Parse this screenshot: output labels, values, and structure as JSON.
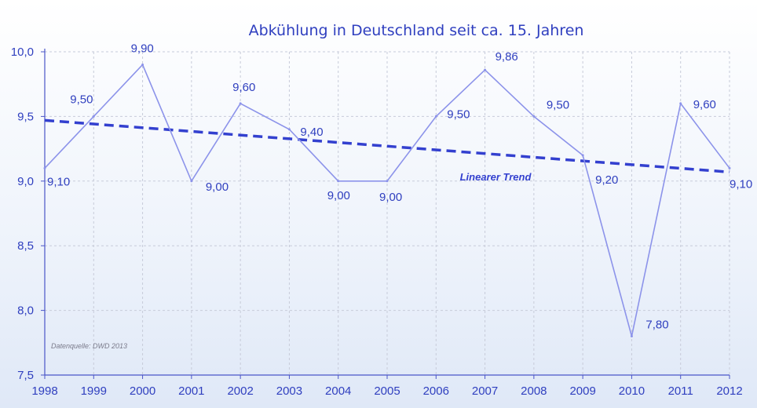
{
  "chart_data": {
    "type": "line",
    "title": "Abkühlung in Deutschland seit ca. 15. Jahren",
    "xlabel": "",
    "ylabel": "",
    "categories": [
      "1998",
      "1999",
      "2000",
      "2001",
      "2002",
      "2003",
      "2004",
      "2005",
      "2006",
      "2007",
      "2008",
      "2009",
      "2010",
      "2011",
      "2012"
    ],
    "series": [
      {
        "values": [
          9.1,
          9.5,
          9.9,
          9.0,
          9.6,
          9.4,
          9.0,
          9.0,
          9.5,
          9.86,
          9.5,
          9.2,
          7.8,
          9.6,
          9.1
        ],
        "data_labels": [
          "9,10",
          "9,50",
          "9,90",
          "9,00",
          "9,60",
          "9,40",
          "9,00",
          "9,00",
          "9,50",
          "9,86",
          "9,50",
          "9,20",
          "7,80",
          "9,60",
          "9,10"
        ]
      }
    ],
    "trend": {
      "label": "Linearer Trend",
      "start_value": 9.47,
      "end_value": 9.07
    },
    "ylim": [
      7.5,
      10.0
    ],
    "y_ticks": [
      10.0,
      9.5,
      9.0,
      8.5,
      8.0,
      7.5
    ],
    "y_tick_labels": [
      "10,0",
      "9,5",
      "9,0",
      "8,5",
      "8,0",
      "7,5"
    ],
    "grid": true,
    "source_note": "Datenquelle: DWD 2013",
    "colors": {
      "text": "#2f3fbf",
      "line": "#8c93ea",
      "trend": "#3340cf",
      "grid": "#c7cbd9",
      "axis": "#4a55c8"
    }
  }
}
